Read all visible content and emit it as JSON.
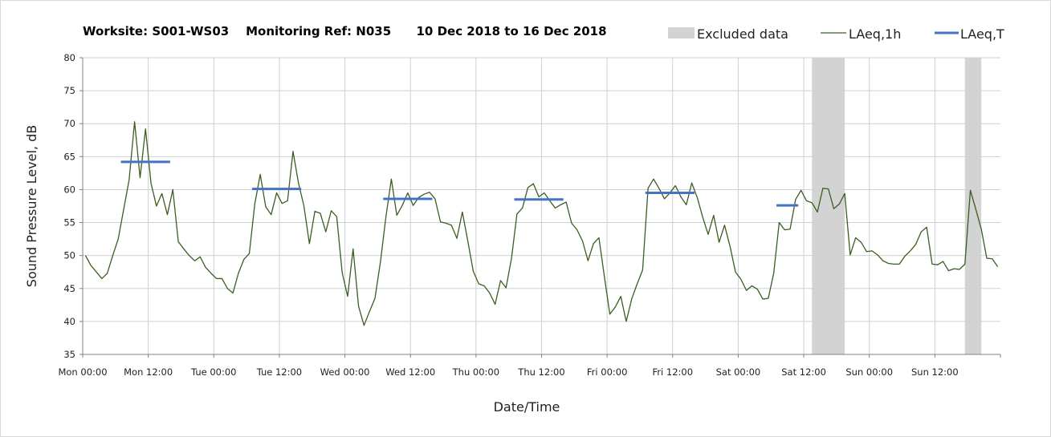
{
  "chart_data": {
    "type": "line",
    "title": "Worksite: S001-WS03    Monitoring Ref: N035      10 Dec 2018 to 16 Dec 2018",
    "xlabel": "Date/Time",
    "ylabel": "Sound Pressure Level, dB",
    "ylim": [
      35,
      80
    ],
    "xlim_hours": [
      0,
      168
    ],
    "y_ticks": [
      "35",
      "40",
      "45",
      "50",
      "55",
      "60",
      "65",
      "70",
      "75",
      "80"
    ],
    "x_ticks": [
      {
        "h": 0,
        "label": "Mon 00:00"
      },
      {
        "h": 12,
        "label": "Mon 12:00"
      },
      {
        "h": 24,
        "label": "Tue 00:00"
      },
      {
        "h": 36,
        "label": "Tue 12:00"
      },
      {
        "h": 48,
        "label": "Wed 00:00"
      },
      {
        "h": 60,
        "label": "Wed 12:00"
      },
      {
        "h": 72,
        "label": "Thu 00:00"
      },
      {
        "h": 84,
        "label": "Thu 12:00"
      },
      {
        "h": 96,
        "label": "Fri 00:00"
      },
      {
        "h": 108,
        "label": "Fri 12:00"
      },
      {
        "h": 120,
        "label": "Sat 00:00"
      },
      {
        "h": 132,
        "label": "Sat 12:00"
      },
      {
        "h": 144,
        "label": "Sun 00:00"
      },
      {
        "h": 156,
        "label": "Sun 12:00"
      }
    ],
    "grid": true,
    "legend": {
      "position": "top-right",
      "items": [
        {
          "name": "Excluded data",
          "color": "#d3d3d3",
          "kind": "box"
        },
        {
          "name": "LAeq,1h",
          "color": "#3a5e22",
          "kind": "line"
        },
        {
          "name": "LAeq,T",
          "color": "#4472c4",
          "kind": "thickline"
        }
      ]
    },
    "excluded_ranges_hours": [
      [
        133.5,
        139.5
      ],
      [
        161.5,
        164.5
      ]
    ],
    "series": [
      {
        "name": "LAeq,1h",
        "color": "#3a5e22",
        "values": [
          50.0,
          48.5,
          47.5,
          46.5,
          47.3,
          50.0,
          52.5,
          57.0,
          61.5,
          70.3,
          61.8,
          69.2,
          61.0,
          57.5,
          59.4,
          56.2,
          60.0,
          52.1,
          51.0,
          50.0,
          49.2,
          49.8,
          48.2,
          47.3,
          46.5,
          46.5,
          45.0,
          44.3,
          47.3,
          49.4,
          50.3,
          57.8,
          62.3,
          57.4,
          56.2,
          59.5,
          57.9,
          58.3,
          65.8,
          61.0,
          57.5,
          51.8,
          56.7,
          56.4,
          53.6,
          56.8,
          55.9,
          47.4,
          43.8,
          51.0,
          42.3,
          39.4,
          41.5,
          43.5,
          49.0,
          55.8,
          61.6,
          56.1,
          57.6,
          59.5,
          57.6,
          58.8,
          59.3,
          59.6,
          58.6,
          55.1,
          54.9,
          54.6,
          52.6,
          56.6,
          52.2,
          47.6,
          45.7,
          45.4,
          44.3,
          42.6,
          46.2,
          45.1,
          49.6,
          56.3,
          57.2,
          60.3,
          60.9,
          58.9,
          59.5,
          58.3,
          57.2,
          57.7,
          58.1,
          54.9,
          53.9,
          52.2,
          49.2,
          51.8,
          52.7,
          46.8,
          41.1,
          42.2,
          43.8,
          40.0,
          43.4,
          45.7,
          47.8,
          60.2,
          61.6,
          60.2,
          58.6,
          59.5,
          60.6,
          58.9,
          57.7,
          61.0,
          58.8,
          55.8,
          53.2,
          56.1,
          52.0,
          54.6,
          51.4,
          47.5,
          46.4,
          44.7,
          45.4,
          44.9,
          43.4,
          43.5,
          47.3,
          55.0,
          53.9,
          54.0,
          58.5,
          59.9,
          58.3,
          58.0,
          56.6,
          60.2,
          60.1,
          57.1,
          57.8,
          59.4,
          50.1,
          52.7,
          52.0,
          50.6,
          50.7,
          50.1,
          49.2,
          48.8,
          48.7,
          48.7,
          49.9,
          50.7,
          51.7,
          53.6,
          54.3,
          48.7,
          48.6,
          49.1,
          47.7,
          48.0,
          47.9,
          48.7,
          59.9,
          57.0,
          54.0,
          49.6,
          49.5,
          48.3
        ]
      },
      {
        "name": "LAeq,T",
        "color": "#4472c4",
        "segments": [
          {
            "start_h": 7,
            "end_h": 16,
            "value": 64.2
          },
          {
            "start_h": 31,
            "end_h": 40,
            "value": 60.1
          },
          {
            "start_h": 55,
            "end_h": 64,
            "value": 58.6
          },
          {
            "start_h": 79,
            "end_h": 88,
            "value": 58.5
          },
          {
            "start_h": 103,
            "end_h": 112,
            "value": 59.5
          },
          {
            "start_h": 127,
            "end_h": 131,
            "value": 57.6
          }
        ]
      }
    ]
  }
}
